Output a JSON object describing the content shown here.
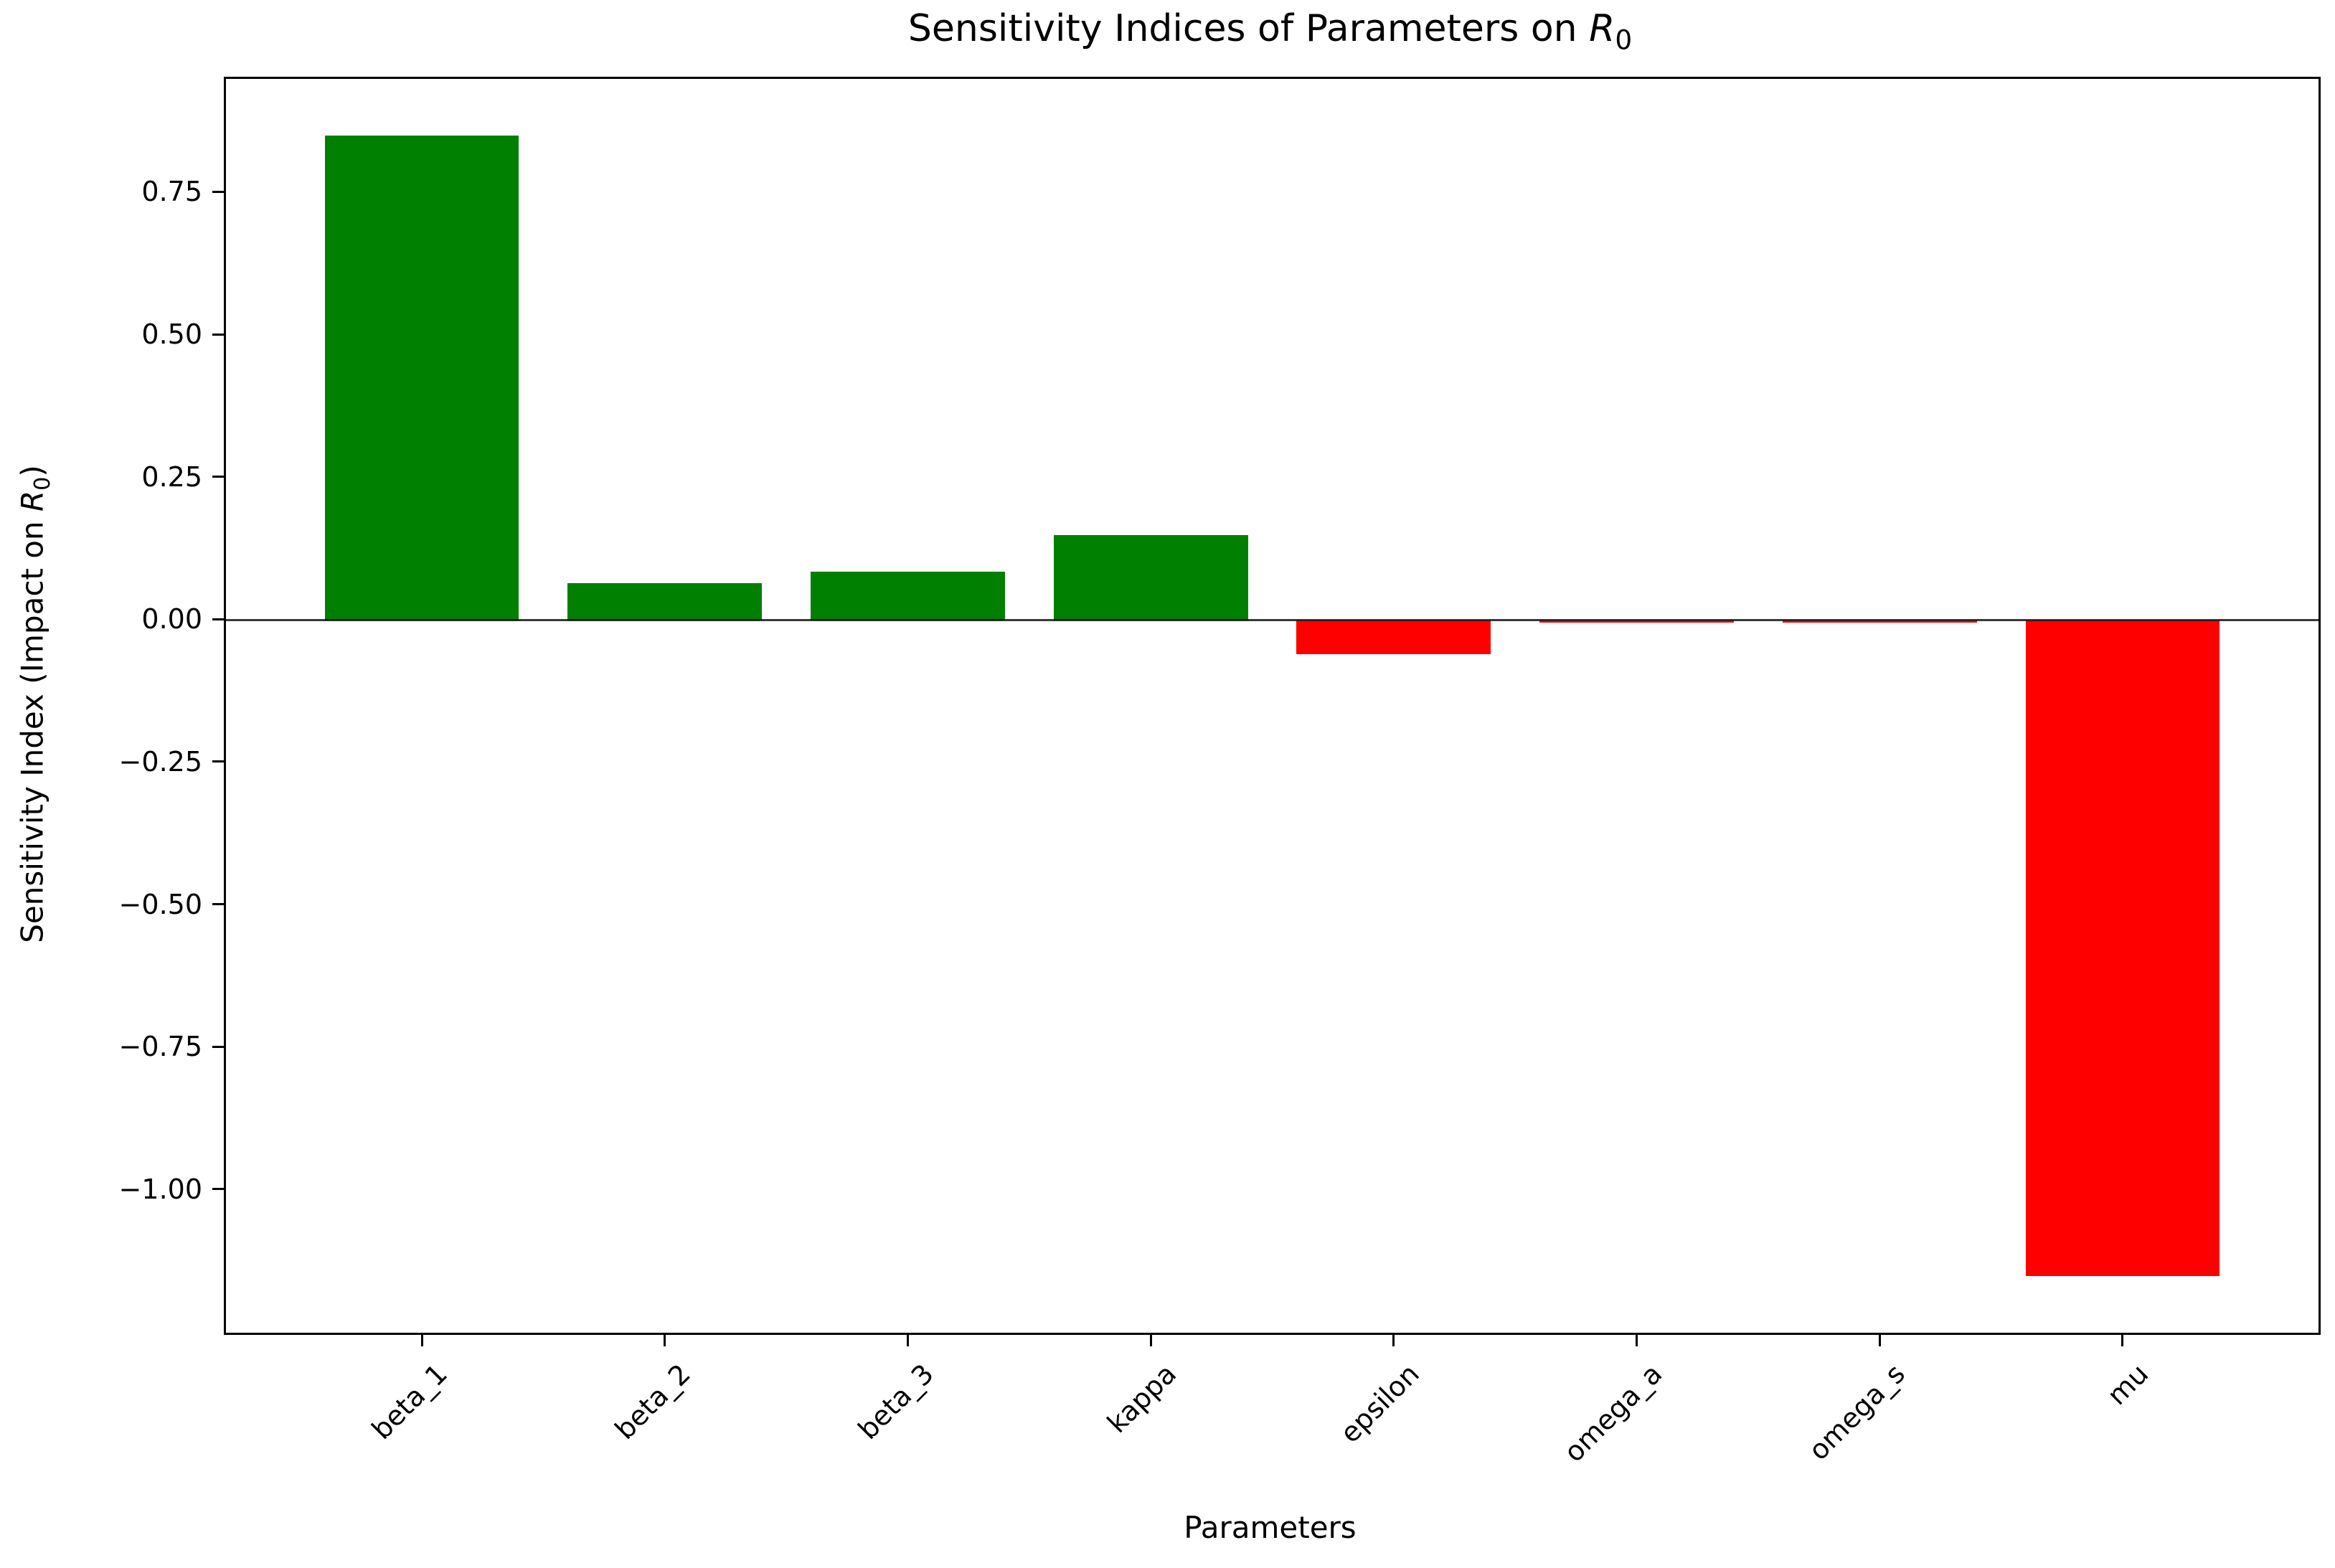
{
  "title": {
    "prefix": "Sensitivity Indices of Parameters on ",
    "var": "R",
    "sub": "0"
  },
  "ylabel": {
    "prefix": "Sensitivity Index (Impact on ",
    "var": "R",
    "sub": "0",
    "suffix": ")"
  },
  "xlabel": "Parameters",
  "chart_data": {
    "type": "bar",
    "title": "Sensitivity Indices of Parameters on R_0",
    "xlabel": "Parameters",
    "ylabel": "Sensitivity Index (Impact on R_0)",
    "categories": [
      "beta_1",
      "beta_2",
      "beta_3",
      "kappa",
      "epsilon",
      "omega_a",
      "omega_s",
      "mu"
    ],
    "values": [
      0.85,
      0.065,
      0.085,
      0.15,
      -0.06,
      -0.003,
      -0.003,
      -1.15
    ],
    "yticks": [
      0.75,
      0.5,
      0.25,
      0,
      -0.25,
      -0.5,
      -0.75,
      -1.0
    ],
    "ytick_labels": [
      "0.75",
      "0.50",
      "0.25",
      "0.00",
      "−0.25",
      "−0.50",
      "−0.75",
      "−1.00"
    ],
    "ylim": [
      -1.25,
      0.95
    ],
    "positive_color": "#008000",
    "negative_color": "#ff0000",
    "bar_width_fraction": 0.8,
    "x_edge_pad": 0.806,
    "grid": false,
    "legend": "none",
    "zero_line": true
  }
}
